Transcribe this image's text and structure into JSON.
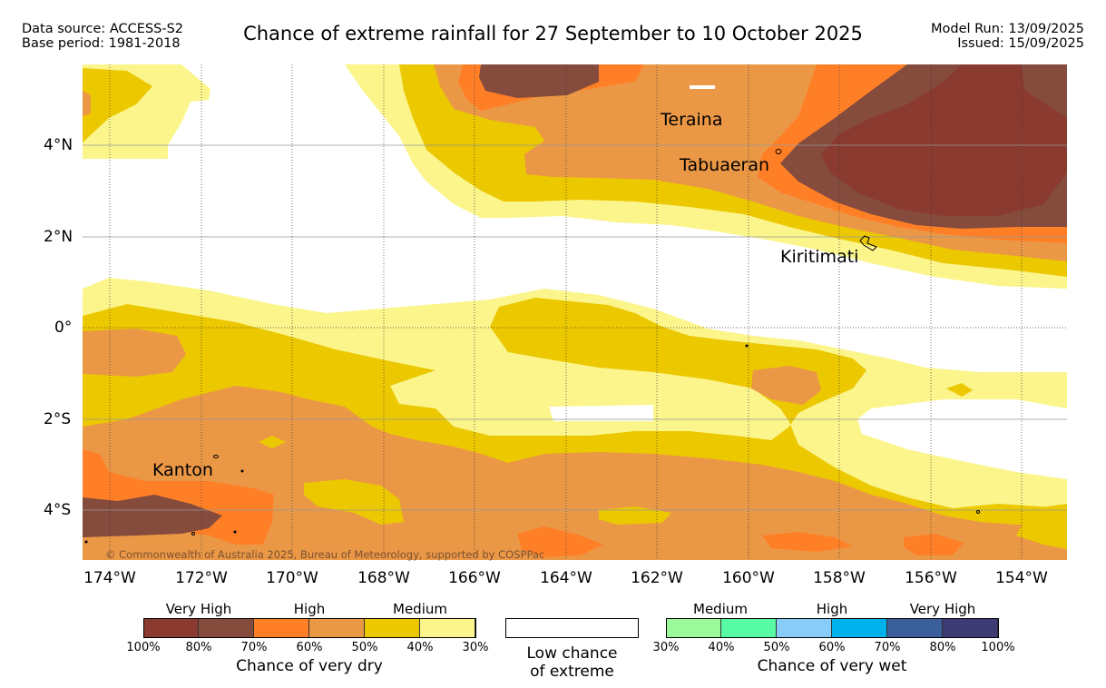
{
  "header": {
    "data_source": "Data source: ACCESS-S2",
    "base_period": "Base period: 1981-2018",
    "title": "Chance of extreme rainfall for 27 September to 10 October 2025",
    "model_run": "Model Run: 13/09/2025",
    "issued": "Issued: 15/09/2025"
  },
  "map": {
    "lat_labels": [
      "4°N",
      "2°N",
      "0°",
      "2°S",
      "4°S"
    ],
    "lon_labels": [
      "174°W",
      "172°W",
      "170°W",
      "168°W",
      "166°W",
      "164°W",
      "162°W",
      "160°W",
      "158°W",
      "156°W",
      "154°W"
    ],
    "places": [
      "Teraina",
      "Tabuaeran",
      "Kiritimati",
      "Kanton"
    ],
    "copyright": "© Commonwealth of Australia 2025, Bureau of Meteorology, supported by COSPPac",
    "colors": {
      "dry_100_80": "#8b3a2f",
      "dry_80_70": "#854b3c",
      "dry_70_60": "#ff7f27",
      "dry_60_50": "#eb9846",
      "dry_50_40": "#ecc800",
      "dry_40_30": "#fbf58c",
      "low": "#ffffff"
    }
  },
  "legend": {
    "dry": {
      "categories": [
        "Very High",
        "High",
        "Medium"
      ],
      "ticks": [
        "100%",
        "80%",
        "70%",
        "60%",
        "50%",
        "40%",
        "30%"
      ],
      "caption": "Chance of very dry",
      "colors": [
        "#8b3a2f",
        "#854b3c",
        "#ff7f27",
        "#eb9846",
        "#ecc800",
        "#fbf58c"
      ]
    },
    "low": {
      "caption_line1": "Low chance",
      "caption_line2": "of extreme",
      "color": "#ffffff"
    },
    "wet": {
      "categories": [
        "Medium",
        "High",
        "Very High"
      ],
      "ticks": [
        "30%",
        "40%",
        "50%",
        "60%",
        "70%",
        "80%",
        "100%"
      ],
      "caption": "Chance of very wet",
      "colors": [
        "#9cf99c",
        "#57fba4",
        "#87cdf7",
        "#00b2ec",
        "#3a5f9a",
        "#3e3a73"
      ]
    }
  }
}
